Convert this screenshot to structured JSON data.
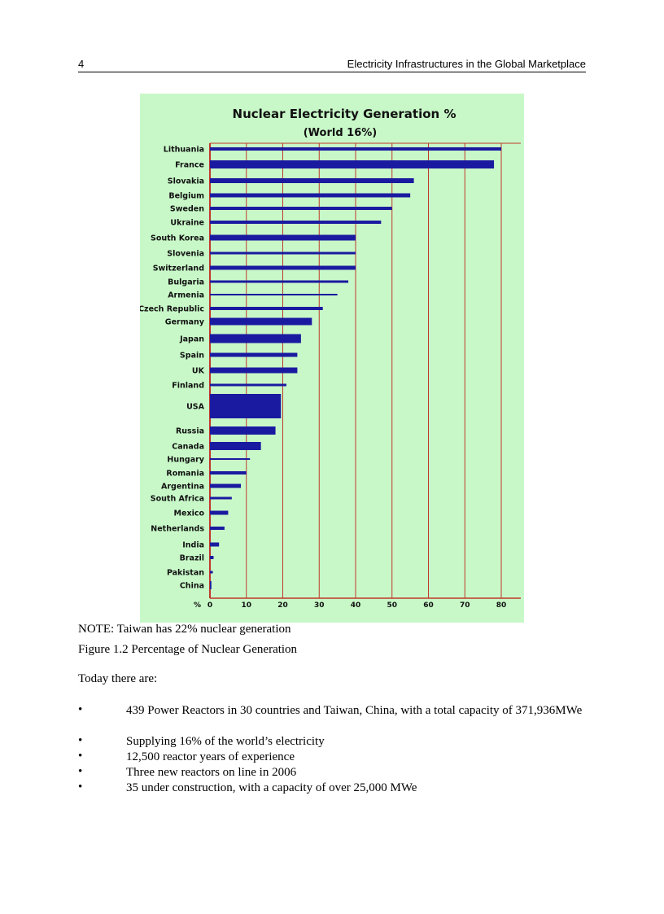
{
  "header": {
    "page_number": "4",
    "running_title": "Electricity Infrastructures in the Global Marketplace"
  },
  "chart_data": {
    "type": "bar",
    "orientation": "horizontal",
    "title": "Nuclear Electricity Generation %",
    "subtitle": "(World 16%)",
    "xlabel": "%",
    "xlim": [
      0,
      80
    ],
    "xticks": [
      0,
      10,
      20,
      30,
      40,
      50,
      60,
      70,
      80
    ],
    "grid": true,
    "colors": {
      "background": "#c8f8c8",
      "bars": "#1a1aa0",
      "grid": "#c0392b"
    },
    "categories": [
      "Lithuania",
      "France",
      "Slovakia",
      "Belgium",
      "Sweden",
      "Ukraine",
      "South Korea",
      "Slovenia",
      "Switzerland",
      "Bulgaria",
      "Armenia",
      "Czech Republic",
      "Germany",
      "Japan",
      "Spain",
      "UK",
      "Finland",
      "USA",
      "Russia",
      "Canada",
      "Hungary",
      "Romania",
      "Argentina",
      "South Africa",
      "Mexico",
      "Netherlands",
      "India",
      "Brazil",
      "Pakistan",
      "China"
    ],
    "values": [
      80,
      78,
      56,
      55,
      50,
      47,
      40,
      40,
      40,
      38,
      35,
      31,
      28,
      25,
      24,
      24,
      21,
      19.5,
      18,
      14,
      11,
      10,
      8.5,
      6,
      5,
      4,
      2.5,
      1,
      0.8,
      0.4
    ]
  },
  "note": "NOTE: Taiwan has 22% nuclear generation",
  "caption": "Figure 1.2 Percentage of Nuclear Generation",
  "intro": "Today there are:",
  "bullets": [
    "439 Power Reactors in 30 countries and Taiwan, China, with a total capacity of 371,936MWe",
    "Supplying 16% of the world’s electricity",
    "12,500 reactor years of experience",
    "Three new reactors on line in 2006",
    "35 under construction, with a capacity of over 25,000 MWe"
  ],
  "bullet_symbol": "•"
}
